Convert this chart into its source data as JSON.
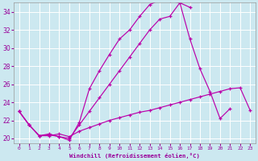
{
  "xlabel": "Windchill (Refroidissement éolien,°C)",
  "xlim": [
    -0.5,
    23.5
  ],
  "ylim": [
    19.5,
    35.0
  ],
  "yticks": [
    20,
    22,
    24,
    26,
    28,
    30,
    32,
    34
  ],
  "xticks": [
    0,
    1,
    2,
    3,
    4,
    5,
    6,
    7,
    8,
    9,
    10,
    11,
    12,
    13,
    14,
    15,
    16,
    17,
    18,
    19,
    20,
    21,
    22,
    23
  ],
  "bg_color": "#cce8f0",
  "line_color": "#bb00aa",
  "grid_color": "#ffffff",
  "lines_x": [
    [
      0,
      1,
      2,
      3,
      4,
      5,
      6,
      7,
      8,
      9,
      10,
      11,
      12,
      13,
      14,
      15,
      16,
      17
    ],
    [
      0,
      1,
      2,
      3,
      4,
      5,
      6,
      7,
      8,
      9,
      10,
      11,
      12,
      13,
      14,
      15,
      16,
      17,
      18,
      19,
      20,
      21
    ],
    [
      0,
      1,
      2,
      3,
      4,
      5,
      6,
      7,
      8,
      9,
      10,
      11,
      12,
      13,
      14,
      15,
      16,
      17,
      18,
      19,
      20,
      21,
      22,
      23
    ]
  ],
  "lines_y": [
    [
      23.0,
      21.5,
      20.3,
      20.4,
      20.2,
      19.8,
      21.8,
      25.5,
      27.5,
      29.3,
      31.0,
      32.0,
      33.5,
      34.8,
      35.3,
      35.2,
      35.0,
      34.5
    ],
    [
      23.0,
      21.5,
      20.3,
      20.5,
      20.2,
      20.0,
      21.5,
      23.0,
      24.5,
      26.0,
      27.5,
      29.0,
      30.5,
      32.0,
      33.2,
      33.5,
      35.0,
      31.0,
      27.7,
      25.2,
      22.2,
      23.3
    ],
    [
      23.0,
      21.5,
      20.3,
      20.3,
      20.5,
      20.2,
      20.8,
      21.2,
      21.6,
      22.0,
      22.3,
      22.6,
      22.9,
      23.1,
      23.4,
      23.7,
      24.0,
      24.3,
      24.6,
      24.9,
      25.2,
      25.5,
      25.6,
      23.1
    ]
  ]
}
